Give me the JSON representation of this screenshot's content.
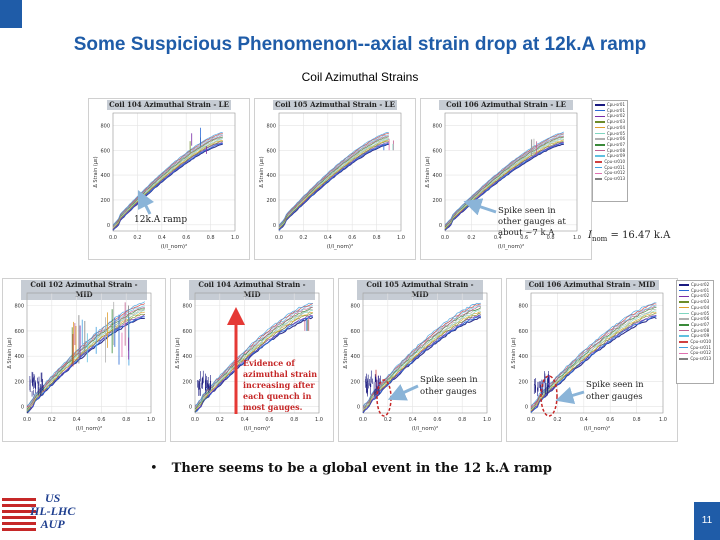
{
  "slide": {
    "title": "Some Suspicious Phenomenon--axial strain drop at 12k.A ramp",
    "subtitle": "Coil Azimuthal Strains",
    "page_number": "11",
    "accent_color": "#1f5ca8"
  },
  "panels_top": [
    {
      "title": "Coil 104 Azimuthal Strain - LE"
    },
    {
      "title": "Coil 105 Azimuthal Strain - LE"
    },
    {
      "title": "Coil 106 Azimuthal Strain - LE"
    }
  ],
  "panels_bottom": [
    {
      "title": "Coil 102 Azimuthal Strain - MID"
    },
    {
      "title": "Coil 104 Azimuthal Strain - MID"
    },
    {
      "title": "Coil 105 Azimuthal Strain - MID"
    },
    {
      "title": "Coil 106 Azimuthal Strain - MID"
    }
  ],
  "axes": {
    "y_label": "Δ Strain (με)",
    "x_label": "(I/I_nom)²",
    "y_ticks_top": [
      "800",
      "600",
      "400",
      "200",
      "0"
    ],
    "y_ticks_bottom": [
      "800",
      "600",
      "400",
      "200",
      "0"
    ],
    "x_ticks": [
      "0.0",
      "0.2",
      "0.4",
      "0.6",
      "0.8",
      "1.0"
    ]
  },
  "legend_top": [
    "Cpu-sr01",
    "Cpu-sr01",
    "Cpu-sr02",
    "Cpu-sr03",
    "Cpu-sr04",
    "Cpu-sr05",
    "Cpu-sr06",
    "Cpu-sr07",
    "Cpu-sr08",
    "Cpu-sr09",
    "Cpu-sr010",
    "Cpu-sr011",
    "Cpu-sr012",
    "Cpu-sr013"
  ],
  "legend_bottom": [
    "Cpu-sr02",
    "Cpu-sr01",
    "Cpu-sr02",
    "Cpu-sr03",
    "Cpu-sr04",
    "Cpu-sr05",
    "Cpu-sr06",
    "Cpu-sr07",
    "Cpu-sr08",
    "Cpu-sr09",
    "Cpu-sr010",
    "Cpu-sr011",
    "Cpu-sr012",
    "Cpu-sr013"
  ],
  "legend_colors": [
    "#1a1a80",
    "#2b6bd6",
    "#7a2ea8",
    "#6d8c2a",
    "#e0a030",
    "#7fd6c0",
    "#b0b0b0",
    "#3a8a3a",
    "#c06090",
    "#60c0e0",
    "#d04040",
    "#40a0e0",
    "#e070b0",
    "#808080"
  ],
  "annotations": {
    "ramp_label": "12k.A ramp",
    "spike_top": "Spike seen in other gauges at about ~7 k.A",
    "inom_prefix": "I",
    "inom_sub": "nom",
    "inom_value": " = 16.47 k.A",
    "spike_bottom_1": "Spike seen in other gauges",
    "spike_bottom_2": "Spike seen in other gauges",
    "evidence": "Evidence of azimuthal strain increasing after each quench in most gauges."
  },
  "bullet": "There seems to be a global event in the 12 k.A ramp",
  "logo": {
    "line1": "US",
    "line2": "HL-LHC",
    "line3": "AUP"
  }
}
